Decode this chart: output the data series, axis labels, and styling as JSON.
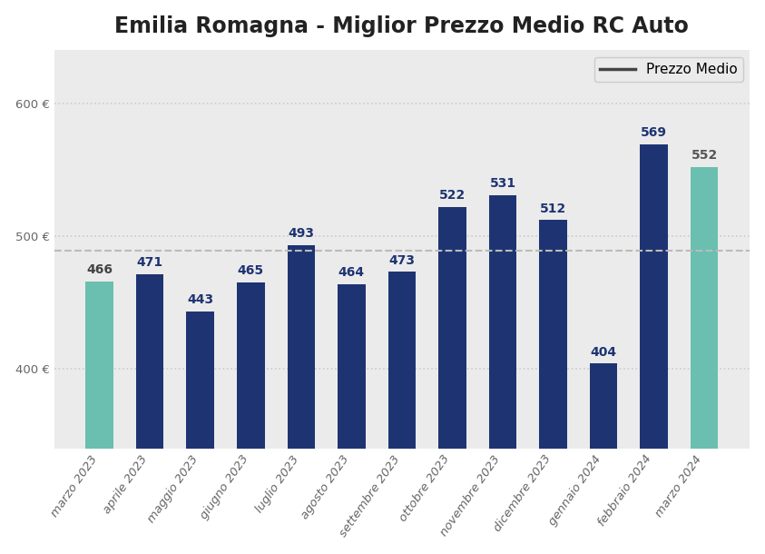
{
  "title": "Emilia Romagna - Miglior Prezzo Medio RC Auto",
  "categories": [
    "marzo 2023",
    "aprile 2023",
    "maggio 2023",
    "giugno 2023",
    "luglio 2023",
    "agosto 2023",
    "settembre 2023",
    "ottobre 2023",
    "novembre 2023",
    "dicembre 2023",
    "gennaio 2024",
    "febbraio 2024",
    "marzo 2024"
  ],
  "values": [
    466,
    471,
    443,
    465,
    493,
    464,
    473,
    522,
    531,
    512,
    404,
    569,
    552
  ],
  "bar_colors": [
    "#6abfb0",
    "#1e3472",
    "#1e3472",
    "#1e3472",
    "#1e3472",
    "#1e3472",
    "#1e3472",
    "#1e3472",
    "#1e3472",
    "#1e3472",
    "#1e3472",
    "#1e3472",
    "#6abfb0"
  ],
  "value_colors": [
    "#444444",
    "#1e3472",
    "#1e3472",
    "#1e3472",
    "#1e3472",
    "#1e3472",
    "#1e3472",
    "#1e3472",
    "#1e3472",
    "#1e3472",
    "#1e3472",
    "#1e3472",
    "#555555"
  ],
  "mean_value": 489,
  "mean_line_color": "#bbbbbb",
  "mean_line_style": "--",
  "legend_label": "Prezzo Medio",
  "legend_line_color": "#444444",
  "ylim": [
    340,
    640
  ],
  "yticks": [
    400,
    500,
    600
  ],
  "ytick_labels": [
    "400 €",
    "500 €",
    "600 €"
  ],
  "figure_bg": "#ffffff",
  "axes_bg": "#ebebeb",
  "title_fontsize": 17,
  "tick_label_fontsize": 9.5,
  "value_label_fontsize": 10,
  "bar_width": 0.55
}
